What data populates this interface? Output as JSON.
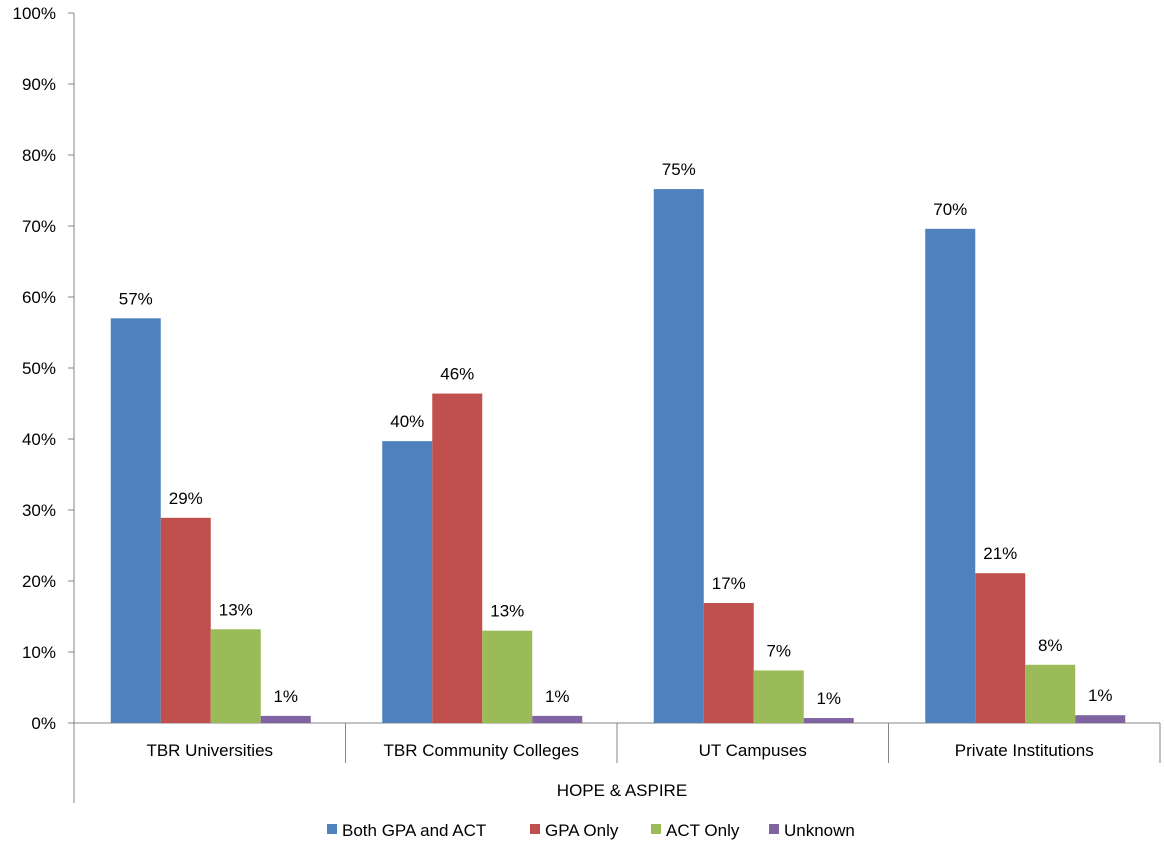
{
  "chart_data": {
    "type": "bar",
    "categories": [
      "TBR Universities",
      "TBR Community Colleges",
      "UT Campuses",
      "Private Institutions"
    ],
    "group_label": "HOPE & ASPIRE",
    "series": [
      {
        "name": "Both GPA and ACT",
        "color": "#4F81BD",
        "values": [
          57,
          39.7,
          75.2,
          69.6
        ],
        "labels": [
          "57%",
          "40%",
          "75%",
          "70%"
        ]
      },
      {
        "name": "GPA Only",
        "color": "#C0504D",
        "values": [
          28.9,
          46.4,
          16.9,
          21.1
        ],
        "labels": [
          "29%",
          "46%",
          "17%",
          "21%"
        ]
      },
      {
        "name": "ACT Only",
        "color": "#9BBB59",
        "values": [
          13.2,
          13.0,
          7.4,
          8.2
        ],
        "labels": [
          "13%",
          "13%",
          "7%",
          "8%"
        ]
      },
      {
        "name": "Unknown",
        "color": "#8064A2",
        "values": [
          1.0,
          1.0,
          0.7,
          1.1
        ],
        "labels": [
          "1%",
          "1%",
          "1%",
          "1%"
        ]
      }
    ],
    "y_ticks": [
      "0%",
      "10%",
      "20%",
      "30%",
      "40%",
      "50%",
      "60%",
      "70%",
      "80%",
      "90%",
      "100%"
    ],
    "ylim": [
      0,
      100
    ],
    "grid": false,
    "legend_position": "bottom"
  }
}
